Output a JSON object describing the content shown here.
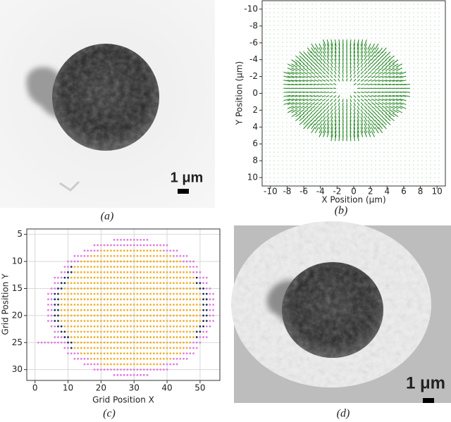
{
  "captions": [
    "(a)",
    "(b)",
    "(c)",
    "(d)"
  ],
  "scale_bars": [
    "1 μm",
    "1 μm"
  ],
  "chart_data": [
    {
      "type": "quiver",
      "xlabel": "X Position (μm)",
      "ylabel": "Y Position (μm)",
      "xlim": [
        -11,
        11
      ],
      "ylim": [
        -11,
        11
      ],
      "invert_y": true,
      "grid": false,
      "color": "#2e8b2e",
      "xticks": [
        -10,
        -8,
        -6,
        -4,
        -2,
        0,
        2,
        4,
        6,
        8,
        10
      ],
      "yticks": [
        -10,
        -8,
        -6,
        -4,
        -2,
        0,
        2,
        4,
        6,
        8,
        10
      ]
    },
    {
      "type": "scatter",
      "xlabel": "Grid Position X",
      "ylabel": "Grid Position Y",
      "xlim": [
        -2.5,
        56
      ],
      "ylim": [
        4,
        32
      ],
      "invert_y": true,
      "grid": true,
      "xticks": [
        0,
        10,
        20,
        30,
        40,
        50
      ],
      "yticks": [
        5,
        10,
        15,
        20,
        25,
        30
      ]
    }
  ]
}
